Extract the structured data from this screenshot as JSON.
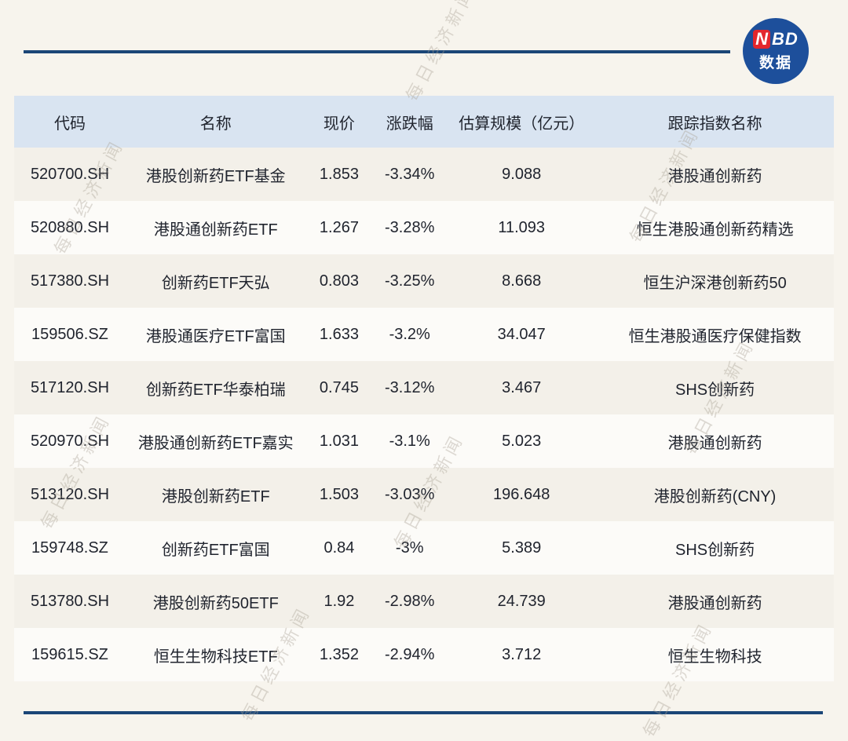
{
  "logo": {
    "n": "N",
    "bd": "BD",
    "sub": "数据"
  },
  "watermark": {
    "text": "每日经济新闻"
  },
  "colors": {
    "accent_rule": "#1b4677",
    "logo_blue": "#1d4f9b",
    "logo_red": "#e3262d",
    "header_bg": "#d9e4f1",
    "page_bg": "#f7f4ed"
  },
  "chart_data": {
    "type": "table",
    "title": "",
    "columns": [
      "代码",
      "名称",
      "现价",
      "涨跌幅",
      "估算规模（亿元）",
      "跟踪指数名称"
    ],
    "rows": [
      [
        "520700.SH",
        "港股创新药ETF基金",
        "1.853",
        "-3.34%",
        "9.088",
        "港股通创新药"
      ],
      [
        "520880.SH",
        "港股通创新药ETF",
        "1.267",
        "-3.28%",
        "11.093",
        "恒生港股通创新药精选"
      ],
      [
        "517380.SH",
        "创新药ETF天弘",
        "0.803",
        "-3.25%",
        "8.668",
        "恒生沪深港创新药50"
      ],
      [
        "159506.SZ",
        "港股通医疗ETF富国",
        "1.633",
        "-3.2%",
        "34.047",
        "恒生港股通医疗保健指数"
      ],
      [
        "517120.SH",
        "创新药ETF华泰柏瑞",
        "0.745",
        "-3.12%",
        "3.467",
        "SHS创新药"
      ],
      [
        "520970.SH",
        "港股通创新药ETF嘉实",
        "1.031",
        "-3.1%",
        "5.023",
        "港股通创新药"
      ],
      [
        "513120.SH",
        "港股创新药ETF",
        "1.503",
        "-3.03%",
        "196.648",
        "港股创新药(CNY)"
      ],
      [
        "159748.SZ",
        "创新药ETF富国",
        "0.84",
        "-3%",
        "5.389",
        "SHS创新药"
      ],
      [
        "513780.SH",
        "港股创新药50ETF",
        "1.92",
        "-2.98%",
        "24.739",
        "港股通创新药"
      ],
      [
        "159615.SZ",
        "恒生生物科技ETF",
        "1.352",
        "-2.94%",
        "3.712",
        "恒生生物科技"
      ]
    ]
  }
}
